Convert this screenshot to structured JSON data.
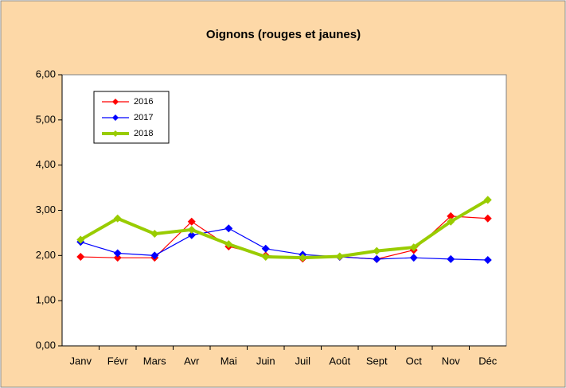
{
  "chart_data": {
    "type": "line",
    "title": "Oignons (rouges et jaunes)",
    "categories": [
      "Janv",
      "Févr",
      "Mars",
      "Avr",
      "Mai",
      "Juin",
      "Juil",
      "Août",
      "Sept",
      "Oct",
      "Nov",
      "Déc"
    ],
    "series": [
      {
        "name": "2016",
        "color": "#ff0000",
        "values": [
          1.97,
          1.95,
          1.95,
          2.75,
          2.2,
          2.0,
          1.93,
          1.97,
          1.92,
          2.12,
          2.87,
          2.82
        ]
      },
      {
        "name": "2017",
        "color": "#0000ff",
        "values": [
          2.3,
          2.05,
          2.0,
          2.45,
          2.6,
          2.15,
          2.02,
          1.97,
          1.92,
          1.95,
          1.92,
          1.9
        ]
      },
      {
        "name": "2018",
        "color": "#99cc00",
        "values": [
          2.35,
          2.82,
          2.48,
          2.57,
          2.25,
          1.97,
          1.95,
          1.98,
          2.1,
          2.18,
          2.75,
          3.23
        ]
      }
    ],
    "ylim": [
      0,
      6
    ],
    "yticks": [
      {
        "value": 0,
        "label": "0,00"
      },
      {
        "value": 1,
        "label": "1,00"
      },
      {
        "value": 2,
        "label": "2,00"
      },
      {
        "value": 3,
        "label": "3,00"
      },
      {
        "value": 4,
        "label": "4,00"
      },
      {
        "value": 5,
        "label": "5,00"
      },
      {
        "value": 6,
        "label": "6,00"
      }
    ],
    "grid": false,
    "legend": "upper left"
  }
}
